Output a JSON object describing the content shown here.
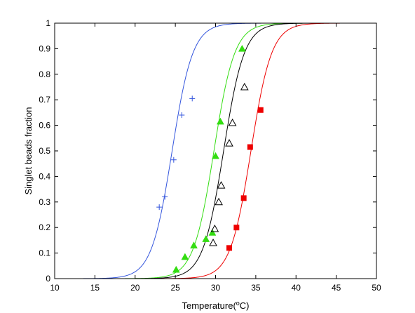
{
  "chart_data": {
    "type": "scatter",
    "xlabel": "Temperature(°C)",
    "xlabel_parts": {
      "before": "Temperature(",
      "superscript": "o",
      "after": "C)"
    },
    "ylabel": "Singlet beads fraction",
    "xlim": [
      10,
      50
    ],
    "ylim": [
      0,
      1
    ],
    "xticks": [
      10,
      15,
      20,
      25,
      30,
      35,
      40,
      45,
      50
    ],
    "yticks": [
      0,
      0.1,
      0.2,
      0.3,
      0.4,
      0.5,
      0.6,
      0.7,
      0.8,
      0.9,
      1
    ],
    "xtick_labels": [
      "10",
      "15",
      "20",
      "25",
      "30",
      "35",
      "40",
      "45",
      "50"
    ],
    "ytick_labels": [
      "0",
      "0.1",
      "0.2",
      "0.3",
      "0.4",
      "0.5",
      "0.6",
      "0.7",
      "0.8",
      "0.9",
      "1"
    ],
    "grid": false,
    "series": [
      {
        "color": "#3355dd",
        "marker": "plus",
        "fit_midpoint": 24.6,
        "fit_steepness": 0.78,
        "points": [
          {
            "x": 23.0,
            "y": 0.28
          },
          {
            "x": 23.7,
            "y": 0.32
          },
          {
            "x": 24.8,
            "y": 0.465
          },
          {
            "x": 25.8,
            "y": 0.64
          },
          {
            "x": 27.1,
            "y": 0.705
          }
        ]
      },
      {
        "color": "#33dd11",
        "marker": "triangle-filled",
        "fit_midpoint": 29.8,
        "fit_steepness": 0.78,
        "points": [
          {
            "x": 25.1,
            "y": 0.035
          },
          {
            "x": 26.2,
            "y": 0.085
          },
          {
            "x": 27.3,
            "y": 0.13
          },
          {
            "x": 28.8,
            "y": 0.155
          },
          {
            "x": 29.6,
            "y": 0.18
          },
          {
            "x": 30.0,
            "y": 0.48
          },
          {
            "x": 30.6,
            "y": 0.615
          },
          {
            "x": 33.3,
            "y": 0.9
          }
        ]
      },
      {
        "color": "#000000",
        "marker": "triangle-open",
        "fit_midpoint": 31.0,
        "fit_steepness": 0.78,
        "points": [
          {
            "x": 29.7,
            "y": 0.14
          },
          {
            "x": 29.9,
            "y": 0.195
          },
          {
            "x": 30.4,
            "y": 0.3
          },
          {
            "x": 30.7,
            "y": 0.365
          },
          {
            "x": 31.7,
            "y": 0.53
          },
          {
            "x": 32.1,
            "y": 0.61
          },
          {
            "x": 33.6,
            "y": 0.75
          }
        ]
      },
      {
        "color": "#ee0000",
        "marker": "square-filled",
        "fit_midpoint": 34.4,
        "fit_steepness": 0.78,
        "points": [
          {
            "x": 31.7,
            "y": 0.12
          },
          {
            "x": 32.6,
            "y": 0.2
          },
          {
            "x": 33.5,
            "y": 0.315
          },
          {
            "x": 34.3,
            "y": 0.515
          },
          {
            "x": 35.6,
            "y": 0.66
          }
        ]
      }
    ]
  }
}
